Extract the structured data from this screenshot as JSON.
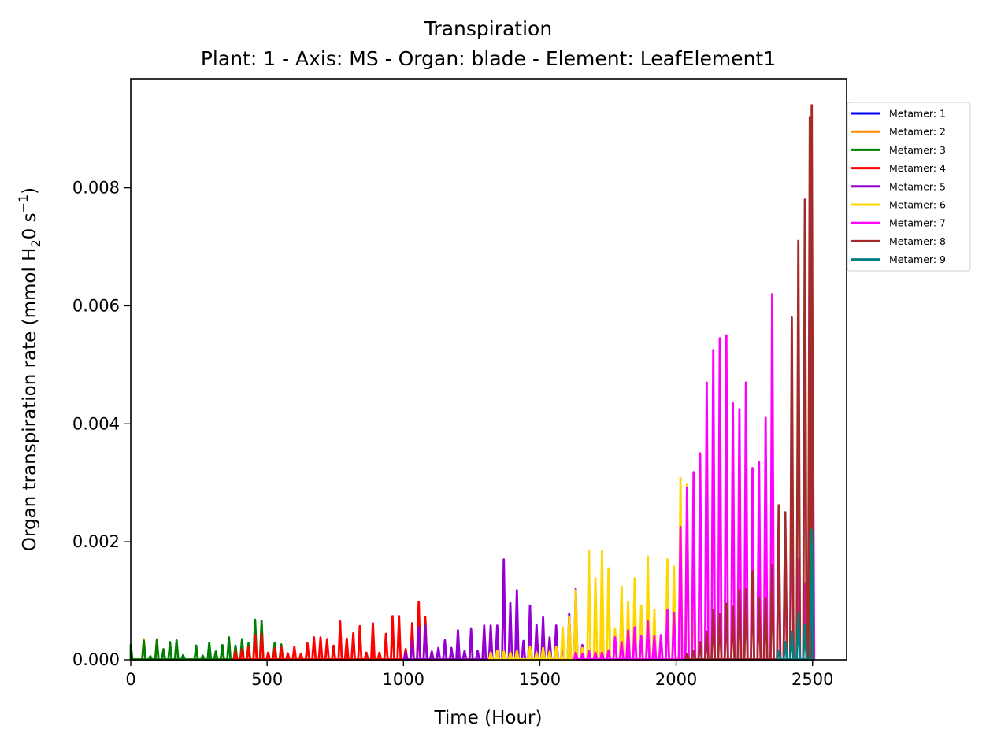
{
  "chart_data": {
    "type": "line",
    "title": "Transpiration",
    "subtitle": "Plant: 1 - Axis: MS - Organ: blade - Element: LeafElement1",
    "xlabel": "Time (Hour)",
    "ylabel_parts": {
      "prefix": "Organ transpiration rate (mmol H",
      "sub": "2",
      "middle": "0 s",
      "sup": "−1",
      "suffix": ")"
    },
    "xlim": [
      0,
      2625
    ],
    "ylim": [
      0,
      0.00985
    ],
    "x_ticks": [
      0,
      500,
      1000,
      1500,
      2000,
      2500
    ],
    "x_tick_labels": [
      "0",
      "500",
      "1000",
      "1500",
      "2000",
      "2500"
    ],
    "y_ticks": [
      0,
      0.002,
      0.004,
      0.006,
      0.008
    ],
    "y_tick_labels": [
      "0.000",
      "0.002",
      "0.004",
      "0.006",
      "0.008"
    ],
    "grid": false,
    "legend_position": "outside-top-right",
    "series": [
      {
        "name": "Metamer: 1",
        "color": "#0000ff",
        "peaks": [
          [
            2497,
            0.0021
          ]
        ]
      },
      {
        "name": "Metamer: 2",
        "color": "#ff8c00",
        "peaks": [
          [
            48,
            0.00035
          ],
          [
            96,
            0.00035
          ],
          [
            2497,
            0.0023
          ]
        ]
      },
      {
        "name": "Metamer: 3",
        "color": "#008000",
        "peaks": [
          [
            0,
            0.00025
          ],
          [
            48,
            0.00032
          ],
          [
            72,
            6e-05
          ],
          [
            96,
            0.00033
          ],
          [
            120,
            0.00018
          ],
          [
            144,
            0.0003
          ],
          [
            168,
            0.00033
          ],
          [
            192,
            8e-05
          ],
          [
            240,
            0.00024
          ],
          [
            264,
            7e-05
          ],
          [
            288,
            0.00029
          ],
          [
            312,
            0.00014
          ],
          [
            336,
            0.00025
          ],
          [
            360,
            0.00038
          ],
          [
            384,
            0.00024
          ],
          [
            408,
            0.00035
          ],
          [
            432,
            0.00028
          ],
          [
            456,
            0.00068
          ],
          [
            480,
            0.00066
          ],
          [
            528,
            0.00029
          ],
          [
            552,
            0.00026
          ]
        ]
      },
      {
        "name": "Metamer: 4",
        "color": "#ff0000",
        "peaks": [
          [
            384,
            0.00014
          ],
          [
            408,
            0.00018
          ],
          [
            432,
            0.00022
          ],
          [
            456,
            0.00042
          ],
          [
            480,
            0.00044
          ],
          [
            504,
            0.00012
          ],
          [
            528,
            0.00019
          ],
          [
            552,
            0.00022
          ],
          [
            576,
            0.00011
          ],
          [
            600,
            0.00022
          ],
          [
            624,
            0.0001
          ],
          [
            648,
            0.00028
          ],
          [
            672,
            0.00038
          ],
          [
            696,
            0.00038
          ],
          [
            720,
            0.00035
          ],
          [
            744,
            0.00024
          ],
          [
            768,
            0.00065
          ],
          [
            792,
            0.00036
          ],
          [
            816,
            0.00045
          ],
          [
            840,
            0.00057
          ],
          [
            864,
            0.00012
          ],
          [
            888,
            0.00062
          ],
          [
            912,
            0.00012
          ],
          [
            936,
            0.00044
          ],
          [
            960,
            0.00074
          ],
          [
            984,
            0.00074
          ],
          [
            1008,
            0.00018
          ],
          [
            1032,
            0.00062
          ],
          [
            1056,
            0.00098
          ],
          [
            1080,
            0.00072
          ],
          [
            1104,
            0.00014
          ]
        ]
      },
      {
        "name": "Metamer: 5",
        "color": "#9400d3",
        "peaks": [
          [
            1008,
            0.00012
          ],
          [
            1032,
            0.00032
          ],
          [
            1056,
            0.00055
          ],
          [
            1080,
            0.00058
          ],
          [
            1104,
            0.00013
          ],
          [
            1128,
            0.0002
          ],
          [
            1152,
            0.00033
          ],
          [
            1176,
            0.0002
          ],
          [
            1200,
            0.0005
          ],
          [
            1224,
            0.00015
          ],
          [
            1248,
            0.00052
          ],
          [
            1272,
            0.00015
          ],
          [
            1296,
            0.00058
          ],
          [
            1320,
            0.00058
          ],
          [
            1344,
            0.00058
          ],
          [
            1368,
            0.0017
          ],
          [
            1392,
            0.00096
          ],
          [
            1416,
            0.00118
          ],
          [
            1440,
            0.00032
          ],
          [
            1464,
            0.00092
          ],
          [
            1488,
            0.00059
          ],
          [
            1512,
            0.00072
          ],
          [
            1536,
            0.00038
          ],
          [
            1560,
            0.00058
          ],
          [
            1584,
            0.00035
          ],
          [
            1608,
            0.00078
          ],
          [
            1632,
            0.0012
          ],
          [
            1656,
            0.00025
          ]
        ]
      },
      {
        "name": "Metamer: 6",
        "color": "#ffd700",
        "peaks": [
          [
            1320,
            0.00012
          ],
          [
            1344,
            0.00015
          ],
          [
            1368,
            0.00014
          ],
          [
            1392,
            0.00012
          ],
          [
            1416,
            0.00015
          ],
          [
            1464,
            0.00022
          ],
          [
            1488,
            0.00012
          ],
          [
            1512,
            0.0002
          ],
          [
            1536,
            0.00014
          ],
          [
            1560,
            0.00022
          ],
          [
            1584,
            0.00055
          ],
          [
            1608,
            0.00072
          ],
          [
            1632,
            0.00118
          ],
          [
            1656,
            0.0002
          ],
          [
            1680,
            0.00184
          ],
          [
            1704,
            0.00138
          ],
          [
            1728,
            0.00185
          ],
          [
            1752,
            0.00155
          ],
          [
            1776,
            0.00052
          ],
          [
            1800,
            0.00124
          ],
          [
            1824,
            0.00098
          ],
          [
            1848,
            0.00138
          ],
          [
            1872,
            0.00092
          ],
          [
            1896,
            0.00175
          ],
          [
            1920,
            0.00085
          ],
          [
            1944,
            0.0004
          ],
          [
            1968,
            0.0017
          ],
          [
            1992,
            0.00158
          ],
          [
            2016,
            0.00308
          ],
          [
            2040,
            0.00297
          ],
          [
            2064,
            0.00128
          ]
        ]
      },
      {
        "name": "Metamer: 7",
        "color": "#ff00ff",
        "peaks": [
          [
            1632,
            0.00012
          ],
          [
            1656,
            0.0001
          ],
          [
            1680,
            0.00015
          ],
          [
            1704,
            0.00012
          ],
          [
            1728,
            0.00012
          ],
          [
            1752,
            0.00016
          ],
          [
            1776,
            0.00038
          ],
          [
            1800,
            0.0003
          ],
          [
            1824,
            0.0005
          ],
          [
            1848,
            0.00055
          ],
          [
            1872,
            0.0004
          ],
          [
            1896,
            0.00065
          ],
          [
            1920,
            0.0004
          ],
          [
            1944,
            0.00042
          ],
          [
            1968,
            0.00085
          ],
          [
            1992,
            0.0008
          ],
          [
            2016,
            0.00225
          ],
          [
            2040,
            0.00292
          ],
          [
            2064,
            0.00318
          ],
          [
            2088,
            0.0035
          ],
          [
            2112,
            0.0047
          ],
          [
            2136,
            0.00525
          ],
          [
            2160,
            0.00545
          ],
          [
            2184,
            0.0055
          ],
          [
            2208,
            0.00435
          ],
          [
            2232,
            0.00425
          ],
          [
            2256,
            0.0047
          ],
          [
            2280,
            0.00325
          ],
          [
            2304,
            0.00335
          ],
          [
            2328,
            0.0041
          ],
          [
            2352,
            0.0062
          ],
          [
            2376,
            0.0022
          ],
          [
            2400,
            0.0023
          ],
          [
            2424,
            0.0036
          ],
          [
            2448,
            0.0017
          ],
          [
            2472,
            0.0013
          ],
          [
            2500,
            0.0055
          ]
        ]
      },
      {
        "name": "Metamer: 8",
        "color": "#a52a2a",
        "peaks": [
          [
            2040,
            0.0001
          ],
          [
            2064,
            0.00015
          ],
          [
            2088,
            0.0003
          ],
          [
            2112,
            0.00048
          ],
          [
            2136,
            0.00085
          ],
          [
            2160,
            0.00078
          ],
          [
            2184,
            0.00095
          ],
          [
            2208,
            0.0009
          ],
          [
            2232,
            0.00118
          ],
          [
            2256,
            0.0012
          ],
          [
            2280,
            0.0015
          ],
          [
            2304,
            0.00105
          ],
          [
            2328,
            0.00105
          ],
          [
            2352,
            0.0016
          ],
          [
            2376,
            0.00262
          ],
          [
            2400,
            0.0025
          ],
          [
            2424,
            0.0058
          ],
          [
            2448,
            0.0071
          ],
          [
            2472,
            0.0078
          ],
          [
            2490,
            0.0092
          ],
          [
            2497,
            0.0094
          ]
        ]
      },
      {
        "name": "Metamer: 9",
        "color": "#008080",
        "peaks": [
          [
            2376,
            0.00015
          ],
          [
            2400,
            0.0003
          ],
          [
            2424,
            0.00048
          ],
          [
            2448,
            0.0008
          ],
          [
            2472,
            0.0006
          ],
          [
            2497,
            0.0022
          ]
        ]
      }
    ]
  }
}
